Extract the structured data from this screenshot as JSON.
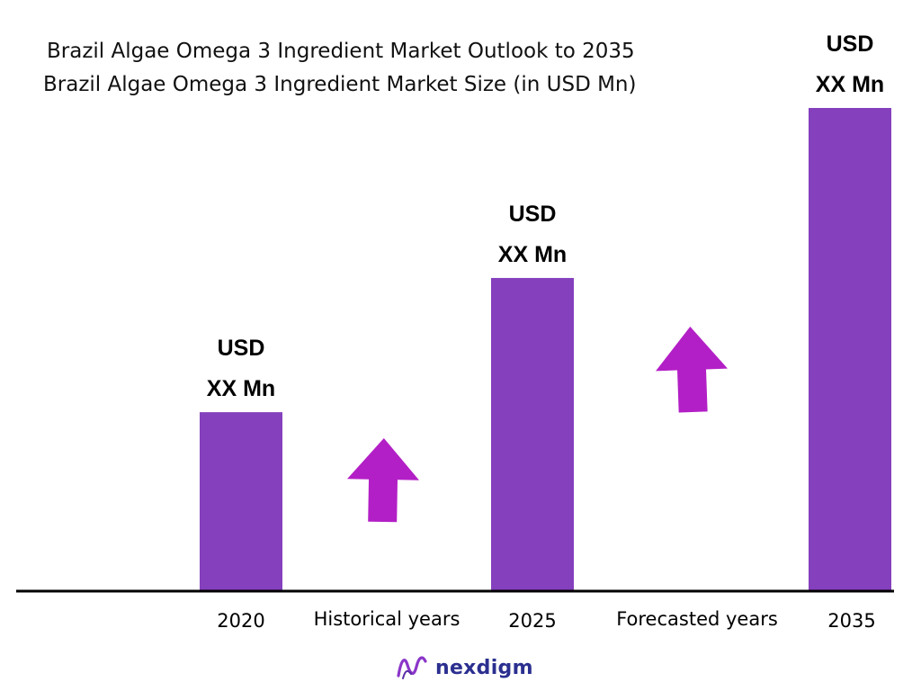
{
  "header": {
    "title": "Brazil Algae Omega 3 Ingredient Market Outlook to 2035",
    "subtitle": "Brazil Algae Omega 3 Ingredient Market  Size (in USD Mn)"
  },
  "chart_data": {
    "type": "bar",
    "categories": [
      "2020",
      "2025",
      "2035"
    ],
    "values": [
      1,
      1.75,
      2.7
    ],
    "value_labels": [
      [
        "USD",
        "XX Mn"
      ],
      [
        "USD",
        "XX Mn"
      ],
      [
        "USD",
        "XX Mn"
      ]
    ],
    "period_labels": [
      "Historical years",
      "Forecasted years"
    ],
    "ylim": [
      0,
      2.7
    ],
    "grid": false,
    "legend": "none"
  },
  "colors": {
    "bar": "#8540bd",
    "arrow": "#b31fc6",
    "axis": "#000000",
    "brand": "#2b2f8f",
    "brand_icon": "#8b36c9"
  },
  "icons": {
    "growth_arrow": "up-arrow-icon",
    "logo": "nexdigm-logo-icon"
  },
  "brand": {
    "name": "nexdigm"
  }
}
